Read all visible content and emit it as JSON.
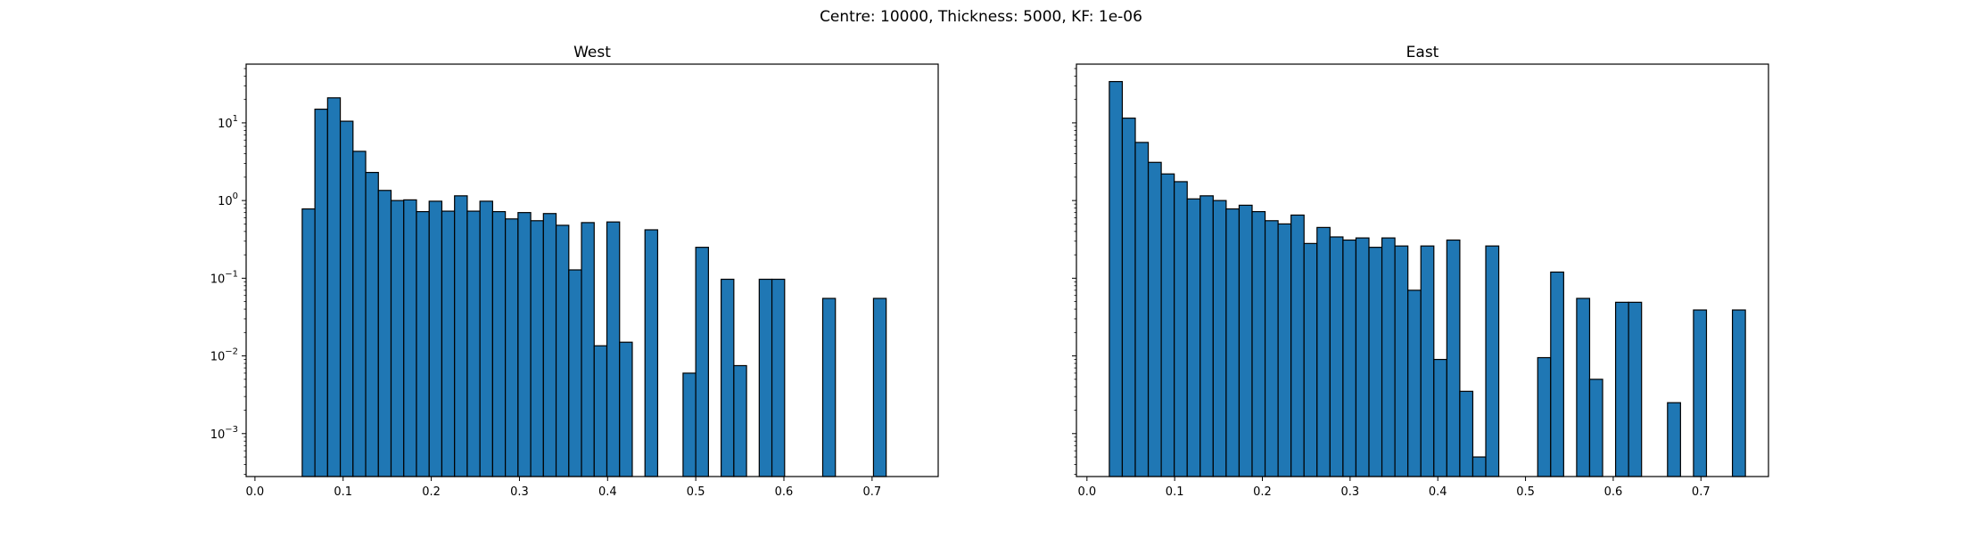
{
  "figure": {
    "suptitle": "Centre: 10000, Thickness: 5000, KF: 1e-06"
  },
  "style": {
    "bar_fill": "#1f77b4",
    "bar_edge": "#000000",
    "axes_edge": "#000000"
  },
  "chart_data": [
    {
      "type": "bar",
      "title": "West",
      "xlabel": "",
      "ylabel": "",
      "xscale": "linear",
      "yscale": "log",
      "xlim": [
        -0.01,
        0.775
      ],
      "ylim": [
        0.00028,
        57
      ],
      "xticks": [
        0.0,
        0.1,
        0.2,
        0.3,
        0.4,
        0.5,
        0.6,
        0.7
      ],
      "xtick_labels": [
        "0.0",
        "0.1",
        "0.2",
        "0.3",
        "0.4",
        "0.5",
        "0.6",
        "0.7"
      ],
      "yticks": [
        0.001,
        0.01,
        0.1,
        1,
        10
      ],
      "ytick_labels": [
        {
          "base": "10",
          "exp": "−3"
        },
        {
          "base": "10",
          "exp": "−2"
        },
        {
          "base": "10",
          "exp": "−1"
        },
        {
          "base": "10",
          "exp": "0"
        },
        {
          "base": "10",
          "exp": "1"
        }
      ],
      "bin_start": 0.0536,
      "bin_width": 0.0144,
      "values": [
        0.78,
        15,
        21,
        10.5,
        4.3,
        2.3,
        1.35,
        1.0,
        1.02,
        0.72,
        0.98,
        0.73,
        1.15,
        0.73,
        0.98,
        0.72,
        0.58,
        0.7,
        0.55,
        0.68,
        0.48,
        0.128,
        0.52,
        0.0135,
        0.53,
        0.015,
        0,
        0.42,
        0,
        0,
        0.006,
        0.25,
        0,
        0.097,
        0.0075,
        0,
        0.097,
        0.097,
        0,
        0,
        0,
        0.055,
        0,
        0,
        0,
        0.055
      ]
    },
    {
      "type": "bar",
      "title": "East",
      "xlabel": "",
      "ylabel": "",
      "xscale": "linear",
      "yscale": "log",
      "xlim": [
        -0.012,
        0.777
      ],
      "ylim": [
        0.00028,
        57
      ],
      "xticks": [
        0.0,
        0.1,
        0.2,
        0.3,
        0.4,
        0.5,
        0.6,
        0.7
      ],
      "xtick_labels": [
        "0.0",
        "0.1",
        "0.2",
        "0.3",
        "0.4",
        "0.5",
        "0.6",
        "0.7"
      ],
      "yticks": [
        0.001,
        0.01,
        0.1,
        1,
        10
      ],
      "ytick_labels": [],
      "bin_start": 0.0255,
      "bin_width": 0.0148,
      "values": [
        34,
        11.5,
        5.6,
        3.1,
        2.2,
        1.75,
        1.05,
        1.15,
        1.0,
        0.78,
        0.87,
        0.72,
        0.55,
        0.5,
        0.65,
        0.28,
        0.45,
        0.34,
        0.31,
        0.33,
        0.25,
        0.33,
        0.26,
        0.07,
        0.26,
        0.009,
        0.31,
        0.0035,
        0.0005,
        0.26,
        0,
        0,
        0,
        0.0095,
        0.12,
        0,
        0.055,
        0.005,
        0,
        0.049,
        0.049,
        0,
        0,
        0.0025,
        0,
        0.039,
        0,
        0,
        0.039
      ]
    }
  ]
}
